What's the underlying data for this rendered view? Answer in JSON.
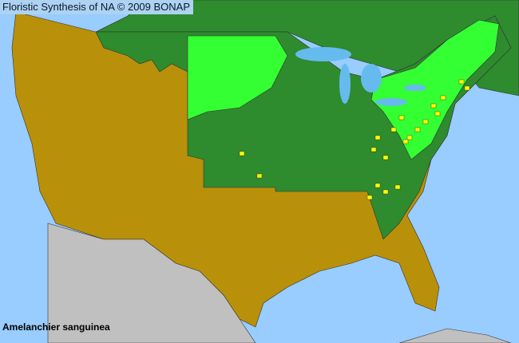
{
  "header": {
    "title": "Floristic Synthesis of NA © 2009 BONAP"
  },
  "map": {
    "species": "Amelanchier sanguinea",
    "colors": {
      "ocean": "#99ccff",
      "lakes": "#66bbee",
      "present_state": "#2e8b2e",
      "present_county": "#33ff33",
      "rare_county": "#ffff00",
      "absent": "#b8900a",
      "outside_region": "#c0c0c0",
      "borders": "#333333"
    }
  }
}
